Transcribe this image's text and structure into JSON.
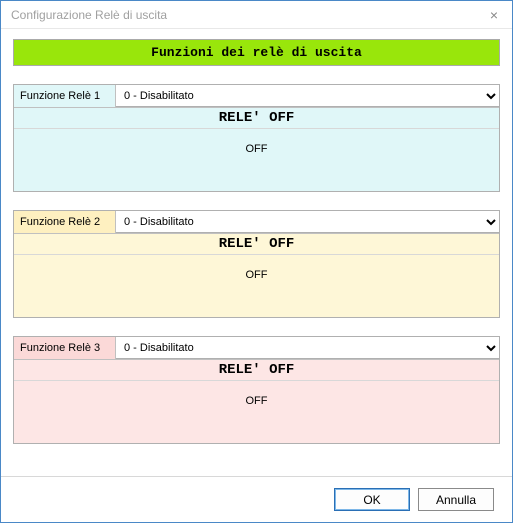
{
  "window": {
    "title": "Configurazione Relè di uscita",
    "close_glyph": "×"
  },
  "banner": {
    "text": "Funzioni dei relè di uscita",
    "bg_color": "#99e60b",
    "text_color": "#000000"
  },
  "relays": [
    {
      "label": "Funzione Relè 1",
      "selected_option": "0 - Disabilitato",
      "status_title": "RELE' OFF",
      "status_body": "OFF",
      "panel_bg": "#e0f7f8",
      "label_bg": "#e0f7f8"
    },
    {
      "label": "Funzione Relè 2",
      "selected_option": "0 - Disabilitato",
      "status_title": "RELE' OFF",
      "status_body": "OFF",
      "panel_bg": "#fef7d7",
      "label_bg": "#fef0c0"
    },
    {
      "label": "Funzione Relè 3",
      "selected_option": "0 - Disabilitato",
      "status_title": "RELE' OFF",
      "status_body": "OFF",
      "panel_bg": "#fde6e5",
      "label_bg": "#fbd9d8"
    }
  ],
  "buttons": {
    "ok": "OK",
    "cancel": "Annulla"
  },
  "colors": {
    "window_border": "#4a88c7",
    "group_border": "#b0b0b0"
  }
}
